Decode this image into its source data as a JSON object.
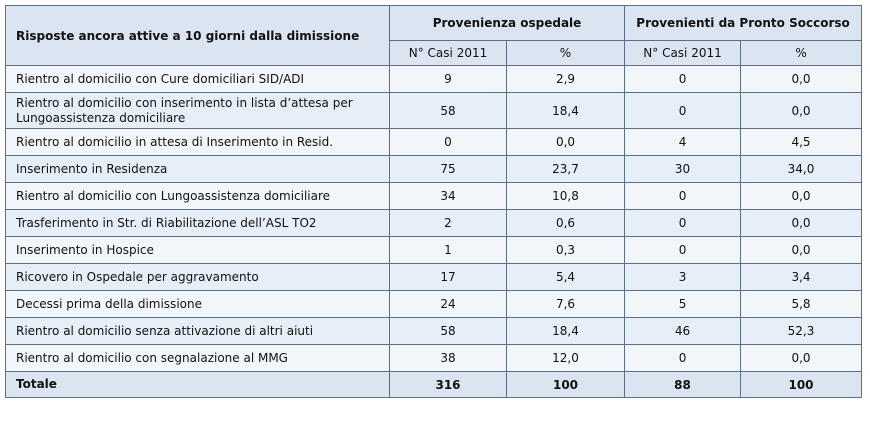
{
  "header": {
    "corner_title": "Risposte ancora attive a 10 giorni dalla dimissione",
    "group1": "Provenienza ospedale",
    "group2": "Provenienti da Pronto Soccorso",
    "sub_casi": "N° Casi 2011",
    "sub_pct": "%"
  },
  "rows": [
    {
      "label": "Rientro al domicilio con Cure domiciliari SID/ADI",
      "c1": "9",
      "p1": "2,9",
      "c2": "0",
      "p2": "0,0"
    },
    {
      "label": "Rientro al domicilio con inserimento in lista d’attesa per Lungoassistenza domiciliare",
      "c1": "58",
      "p1": "18,4",
      "c2": "0",
      "p2": "0,0"
    },
    {
      "label": "Rientro al domicilio in attesa di Inserimento in Resid.",
      "c1": "0",
      "p1": "0,0",
      "c2": "4",
      "p2": "4,5"
    },
    {
      "label": "Inserimento in Residenza",
      "c1": "75",
      "p1": "23,7",
      "c2": "30",
      "p2": "34,0"
    },
    {
      "label": "Rientro al domicilio con Lungoassistenza domiciliare",
      "c1": "34",
      "p1": "10,8",
      "c2": "0",
      "p2": "0,0"
    },
    {
      "label": "Trasferimento in Str. di Riabilitazione dell’ASL TO2",
      "c1": "2",
      "p1": "0,6",
      "c2": "0",
      "p2": "0,0"
    },
    {
      "label": "Inserimento in Hospice",
      "c1": "1",
      "p1": "0,3",
      "c2": "0",
      "p2": "0,0"
    },
    {
      "label": "Ricovero in Ospedale per aggravamento",
      "c1": "17",
      "p1": "5,4",
      "c2": "3",
      "p2": "3,4"
    },
    {
      "label": "Decessi prima della dimissione",
      "c1": "24",
      "p1": "7,6",
      "c2": "5",
      "p2": "5,8"
    },
    {
      "label": "Rientro al domicilio senza attivazione di altri aiuti",
      "c1": "58",
      "p1": "18,4",
      "c2": "46",
      "p2": "52,3"
    },
    {
      "label": "Rientro al domicilio con segnalazione al MMG",
      "c1": "38",
      "p1": "12,0",
      "c2": "0",
      "p2": "0,0"
    }
  ],
  "total": {
    "label": "Totale",
    "c1": "316",
    "p1": "100",
    "c2": "88",
    "p2": "100"
  }
}
